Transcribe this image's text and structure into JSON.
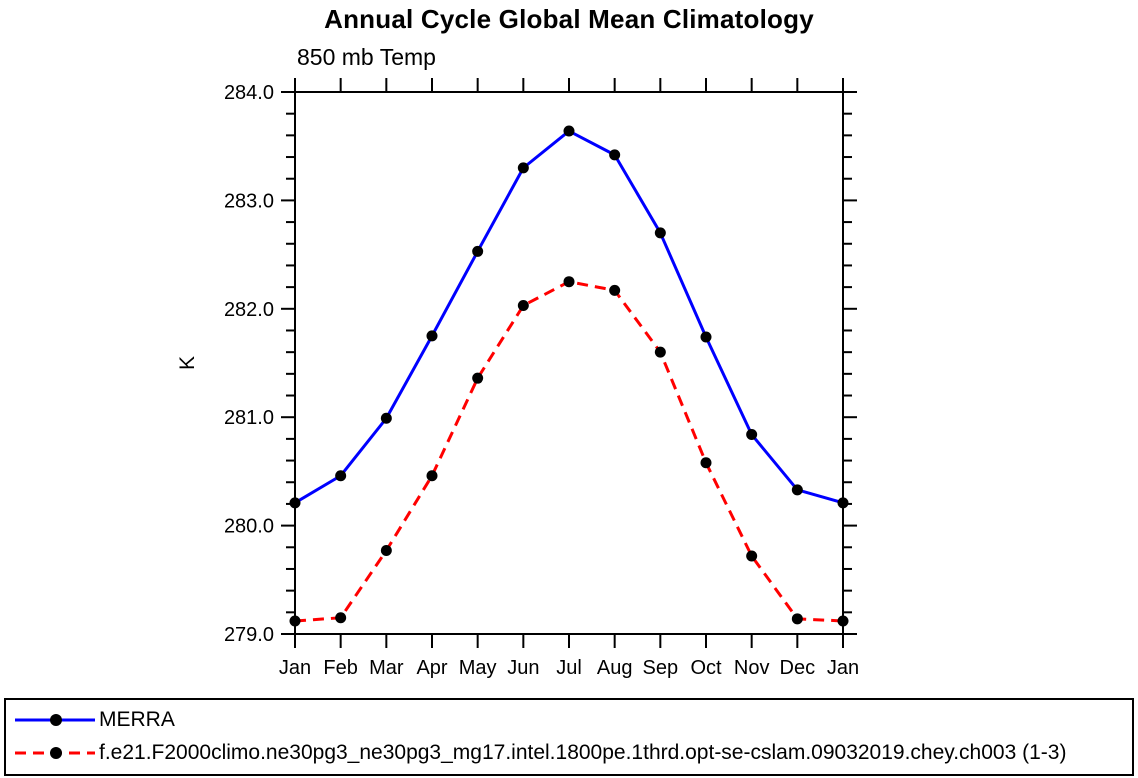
{
  "title": "Annual Cycle Global Mean Climatology",
  "subtitle": "850 mb Temp",
  "chart_data": {
    "type": "line",
    "title": "Annual Cycle Global Mean Climatology",
    "subtitle": "850 mb Temp",
    "xlabel": "",
    "ylabel": "K",
    "categories": [
      "Jan",
      "Feb",
      "Mar",
      "Apr",
      "May",
      "Jun",
      "Jul",
      "Aug",
      "Sep",
      "Oct",
      "Nov",
      "Dec",
      "Jan"
    ],
    "series": [
      {
        "name": "MERRA",
        "color": "#0000ff",
        "style": "solid",
        "marker": "black-dot",
        "values": [
          280.21,
          280.46,
          280.99,
          281.75,
          282.53,
          283.3,
          283.64,
          283.42,
          282.7,
          281.74,
          280.84,
          280.33,
          280.21
        ]
      },
      {
        "name": "f.e21.F2000climo.ne30pg3_ne30pg3_mg17.intel.1800pe.1thrd.opt-se-cslam.09032019.chey.ch003 (1-3)",
        "color": "#ff0000",
        "style": "dashed",
        "marker": "black-dot",
        "values": [
          279.12,
          279.15,
          279.77,
          280.46,
          281.36,
          282.03,
          282.25,
          282.17,
          281.6,
          280.58,
          279.72,
          279.14,
          279.12
        ]
      }
    ],
    "ylim": [
      279.0,
      284.0
    ],
    "yticks_major": [
      279.0,
      280.0,
      281.0,
      282.0,
      283.0,
      284.0
    ],
    "ytick_labels": [
      "279.0",
      "280.0",
      "281.0",
      "282.0",
      "283.0",
      "284.0"
    ],
    "yminor_step": 0.2,
    "grid": false,
    "legend_position": "bottom",
    "axis_color": "#000000",
    "marker_color": "#000000"
  }
}
